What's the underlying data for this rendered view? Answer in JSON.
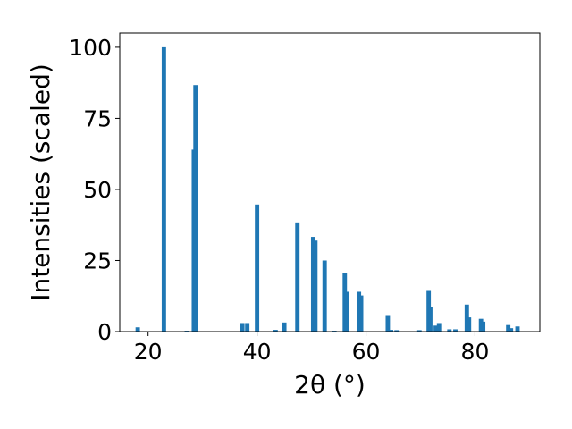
{
  "chart_data": {
    "type": "bar",
    "title": "",
    "xlabel": "2θ (°)",
    "ylabel": "Intensities (scaled)",
    "xlim": [
      14.8,
      91.9
    ],
    "ylim": [
      0,
      105
    ],
    "xticks": [
      20,
      40,
      60,
      80
    ],
    "yticks": [
      0,
      25,
      50,
      75,
      100
    ],
    "grid": false,
    "legend": "none",
    "bar_color": "#1f77b4",
    "bar_width_deg": 0.8,
    "series": [
      {
        "x": [
          18.1,
          22.9,
          27.1,
          28.4,
          28.7,
          37.3,
          38.2,
          40.0,
          43.4,
          45.0,
          47.4,
          50.3,
          50.7,
          52.4,
          54.2,
          56.1,
          56.4,
          58.7,
          59.1,
          64.0,
          64.6,
          65.6,
          69.8,
          71.5,
          71.8,
          72.8,
          73.4,
          75.3,
          76.4,
          78.5,
          78.9,
          81.1,
          81.5,
          86.1,
          86.6,
          87.8
        ],
        "values": [
          1.5,
          100,
          0.3,
          64,
          86.7,
          3,
          3,
          44.7,
          0.6,
          3.2,
          38.4,
          33.3,
          32,
          25,
          0.3,
          20.6,
          14,
          14,
          12.7,
          5.5,
          0.6,
          0.5,
          0.5,
          14.3,
          8.5,
          2.1,
          3,
          0.8,
          0.8,
          9.5,
          5,
          4.5,
          3.5,
          2.3,
          1.2,
          1.8
        ]
      }
    ]
  }
}
